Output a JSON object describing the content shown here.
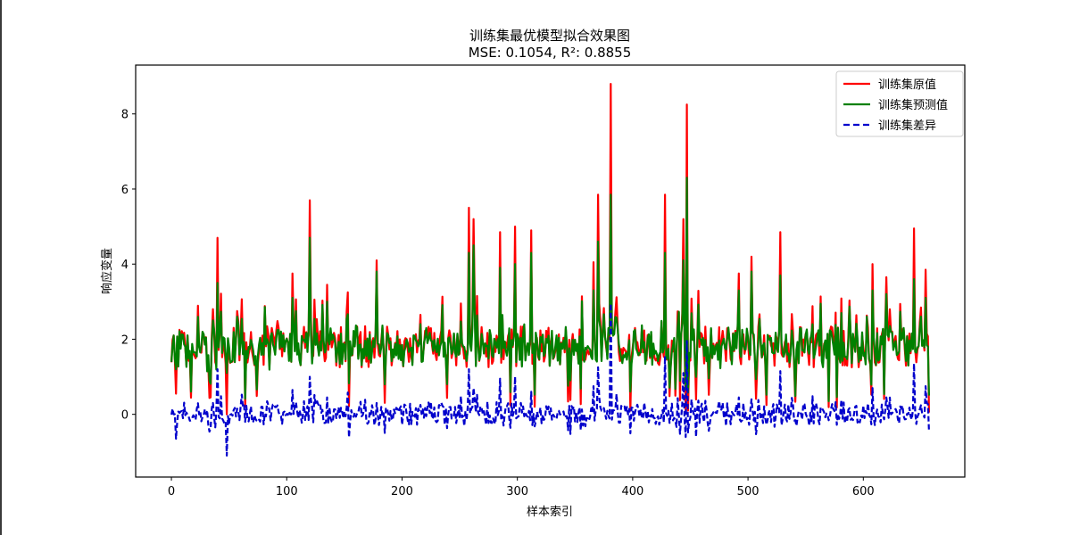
{
  "chart_data": {
    "type": "line",
    "title": "训练集最优模型拟合效果图",
    "subtitle": "MSE: 0.1054, R²: 0.8855",
    "metrics": {
      "mse": 0.1054,
      "r2": 0.8855
    },
    "xlabel": "样本索引",
    "ylabel": "响应变量",
    "xlim": [
      -31,
      688
    ],
    "ylim": [
      -1.67,
      9.3
    ],
    "xticks": [
      0,
      100,
      200,
      300,
      400,
      500,
      600
    ],
    "yticks": [
      0,
      2,
      4,
      6,
      8
    ],
    "grid": false,
    "legend_position": "upper right",
    "n_samples": 658,
    "series": [
      {
        "name": "训练集原值",
        "color": "#ff0000",
        "style": "solid",
        "width": 2
      },
      {
        "name": "训练集预测值",
        "color": "#008000",
        "style": "solid",
        "width": 2
      },
      {
        "name": "训练集差异",
        "color": "#0000cc",
        "style": "dashed",
        "width": 2
      }
    ],
    "baseline": {
      "mean": 1.8,
      "noise_amplitude": 0.55,
      "seed": 20240
    },
    "spikes": [
      {
        "x": 2,
        "actual": 2.1,
        "predicted": 2.1
      },
      {
        "x": 4,
        "actual": 0.55,
        "predicted": 1.2
      },
      {
        "x": 36,
        "actual": 2.8,
        "predicted": 2.5
      },
      {
        "x": 40,
        "actual": 4.7,
        "predicted": 3.5
      },
      {
        "x": 48,
        "actual": 0.0,
        "predicted": 1.1
      },
      {
        "x": 57,
        "actual": 2.75,
        "predicted": 2.6
      },
      {
        "x": 105,
        "actual": 3.75,
        "predicted": 3.1
      },
      {
        "x": 120,
        "actual": 5.7,
        "predicted": 4.7
      },
      {
        "x": 135,
        "actual": 3.45,
        "predicted": 3.0
      },
      {
        "x": 178,
        "actual": 4.1,
        "predicted": 3.8
      },
      {
        "x": 216,
        "actual": 2.65,
        "predicted": 2.4
      },
      {
        "x": 258,
        "actual": 5.5,
        "predicted": 4.3
      },
      {
        "x": 262,
        "actual": 5.2,
        "predicted": 4.5
      },
      {
        "x": 285,
        "actual": 4.85,
        "predicted": 3.9
      },
      {
        "x": 298,
        "actual": 5.0,
        "predicted": 4.0
      },
      {
        "x": 312,
        "actual": 4.9,
        "predicted": 4.3
      },
      {
        "x": 366,
        "actual": 4.05,
        "predicted": 3.3
      },
      {
        "x": 370,
        "actual": 5.85,
        "predicted": 4.6
      },
      {
        "x": 381,
        "actual": 8.8,
        "predicted": 5.85
      },
      {
        "x": 428,
        "actual": 5.85,
        "predicted": 4.3
      },
      {
        "x": 444,
        "actual": 5.2,
        "predicted": 4.1
      },
      {
        "x": 447,
        "actual": 8.25,
        "predicted": 6.3
      },
      {
        "x": 492,
        "actual": 3.75,
        "predicted": 3.3
      },
      {
        "x": 503,
        "actual": 4.2,
        "predicted": 3.8
      },
      {
        "x": 528,
        "actual": 4.85,
        "predicted": 3.7
      },
      {
        "x": 608,
        "actual": 4.0,
        "predicted": 3.3
      },
      {
        "x": 620,
        "actual": 3.65,
        "predicted": 3.2
      },
      {
        "x": 644,
        "actual": 4.95,
        "predicted": 3.6
      },
      {
        "x": 654,
        "actual": 3.85,
        "predicted": 3.1
      },
      {
        "x": 657,
        "actual": 0.05,
        "predicted": 0.5
      }
    ],
    "difference_extremes": {
      "min": -1.1,
      "min_x": 48,
      "max": 2.95,
      "max_x": 381
    }
  },
  "legend": {
    "items": [
      {
        "label": "训练集原值",
        "color": "#ff0000",
        "dashed": false
      },
      {
        "label": "训练集预测值",
        "color": "#008000",
        "dashed": false
      },
      {
        "label": "训练集差异",
        "color": "#0000cc",
        "dashed": true
      }
    ]
  }
}
